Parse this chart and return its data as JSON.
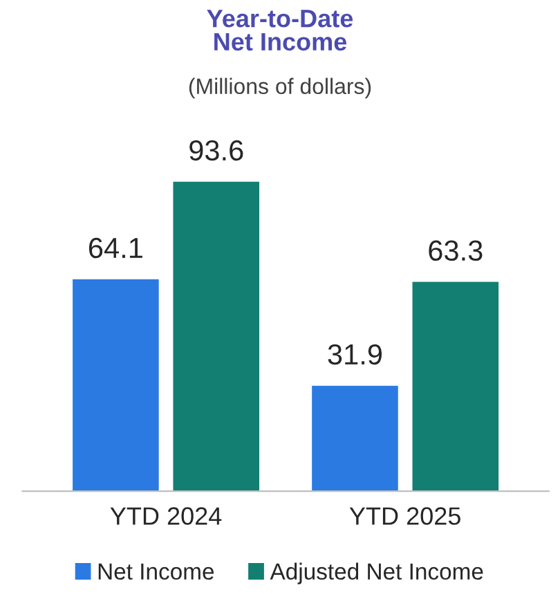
{
  "chart_data": {
    "type": "bar",
    "title": "Year-to-Date\nNet Income",
    "subtitle": "(Millions of dollars)",
    "categories": [
      "YTD 2024",
      "YTD 2025"
    ],
    "series": [
      {
        "name": "Net Income",
        "color": "#2a7ae2",
        "values": [
          64.1,
          31.9
        ]
      },
      {
        "name": "Adjusted Net Income",
        "color": "#127f72",
        "values": [
          93.6,
          63.3
        ]
      }
    ],
    "data_labels": true,
    "legend": "bottom",
    "grid": false,
    "tick_labels": "x"
  }
}
